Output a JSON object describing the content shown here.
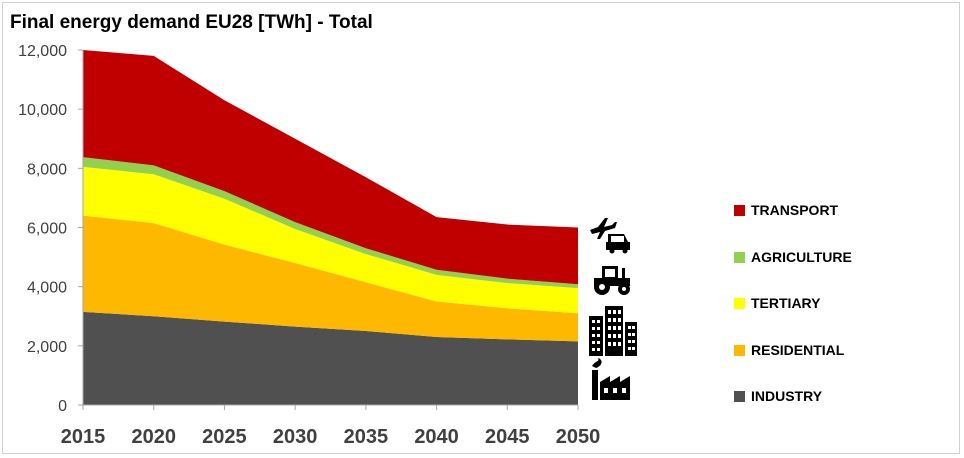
{
  "title": "Final energy demand EU28 [TWh] - Total",
  "colors": {
    "INDUSTRY": "#505050",
    "RESIDENTIAL": "#ffb800",
    "TERTIARY": "#ffff00",
    "AGRICULTURE": "#92d050",
    "TRANSPORT": "#c00000"
  },
  "icons": [
    "plane-car-icon",
    "tractor-icon",
    "buildings-icon",
    "factory-icon"
  ],
  "chart_data": {
    "type": "area",
    "stacked": true,
    "title": "Final energy demand EU28 [TWh] - Total",
    "x": [
      2015,
      2020,
      2025,
      2030,
      2035,
      2040,
      2045,
      2050
    ],
    "x_tick_labels": [
      "2015",
      "2020",
      "2025",
      "2030",
      "2035",
      "2040",
      "2045",
      "2050"
    ],
    "y_tick_labels": [
      "0",
      "2,000",
      "4,000",
      "6,000",
      "8,000",
      "10,000",
      "12,000"
    ],
    "ylim": [
      0,
      12000
    ],
    "grid": false,
    "legend_position": "right",
    "series": [
      {
        "name": "INDUSTRY",
        "values": [
          3150,
          3000,
          2820,
          2650,
          2500,
          2300,
          2220,
          2150
        ]
      },
      {
        "name": "RESIDENTIAL",
        "values": [
          3250,
          3150,
          2600,
          2150,
          1650,
          1200,
          1050,
          950
        ]
      },
      {
        "name": "TERTIARY",
        "values": [
          1650,
          1650,
          1550,
          1150,
          950,
          900,
          850,
          850
        ]
      },
      {
        "name": "AGRICULTURE",
        "values": [
          330,
          300,
          260,
          230,
          200,
          170,
          150,
          130
        ]
      },
      {
        "name": "TRANSPORT",
        "values": [
          3620,
          3700,
          3070,
          2820,
          2400,
          1780,
          1830,
          1920
        ]
      }
    ],
    "legend_order": [
      "TRANSPORT",
      "AGRICULTURE",
      "TERTIARY",
      "RESIDENTIAL",
      "INDUSTRY"
    ]
  }
}
